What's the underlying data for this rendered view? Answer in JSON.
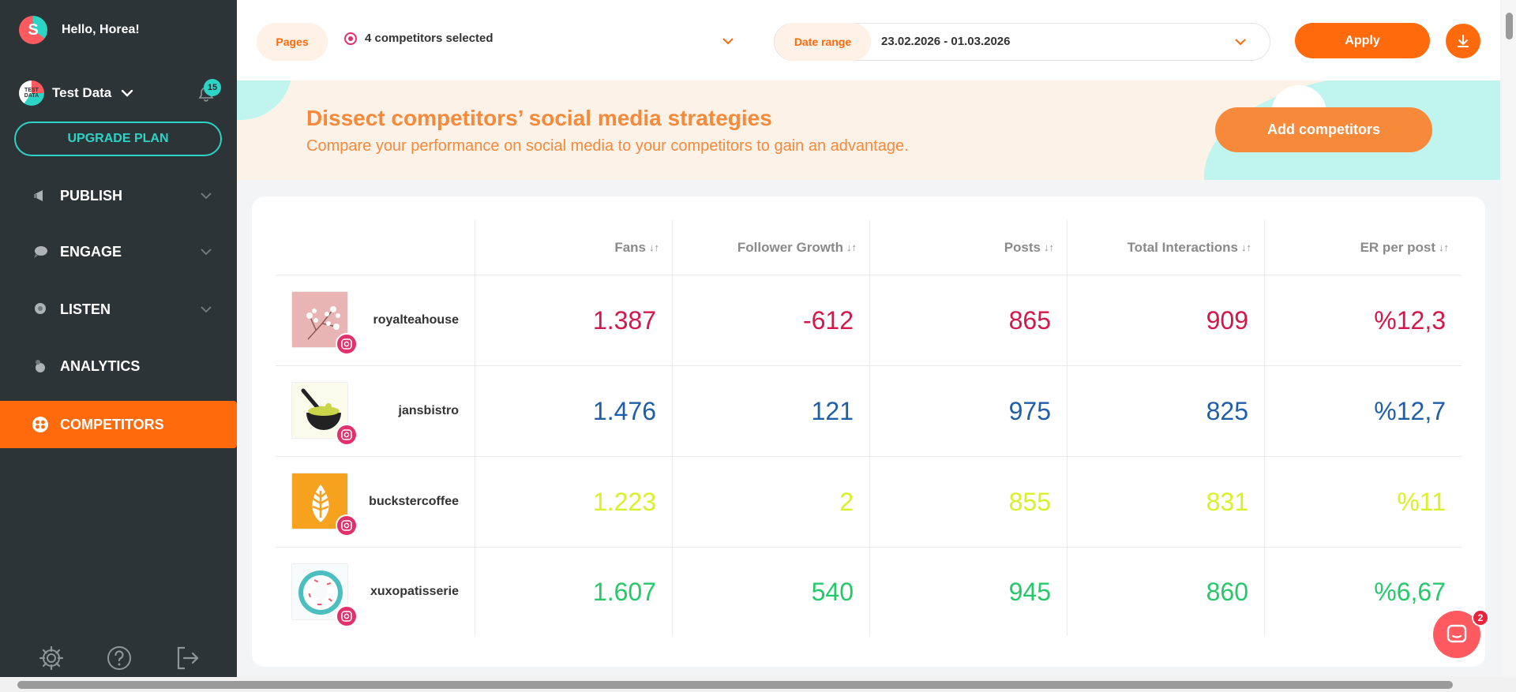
{
  "sidebar": {
    "hello": "Hello, Horea!",
    "logo_letter": "S",
    "workspace": {
      "avatar_text": "TEST DATA",
      "name": "Test Data"
    },
    "notifications_count": "15",
    "upgrade_label": "UPGRADE PLAN",
    "nav": [
      {
        "label": "PUBLISH",
        "icon": "megaphone-icon",
        "expandable": true
      },
      {
        "label": "ENGAGE",
        "icon": "chat-bubble-icon",
        "expandable": true
      },
      {
        "label": "LISTEN",
        "icon": "ear-icon",
        "expandable": true
      },
      {
        "label": "ANALYTICS",
        "icon": "chart-icon",
        "expandable": false
      },
      {
        "label": "COMPETITORS",
        "icon": "competitors-icon",
        "expandable": false,
        "active": true
      }
    ]
  },
  "filters": {
    "pages_label": "Pages",
    "pages_value": "4 competitors selected",
    "date_label": "Date range",
    "date_value": "23.02.2026 - 01.03.2026",
    "apply_label": "Apply"
  },
  "banner": {
    "title": "Dissect competitors’ social media strategies",
    "subtitle": "Compare your performance on social media to your competitors to gain an advantage.",
    "button_label": "Add competitors"
  },
  "table": {
    "columns": [
      "Fans",
      "Follower Growth",
      "Posts",
      "Total Interactions",
      "ER per post"
    ],
    "sort_glyph": "↓↑",
    "rows": [
      {
        "name": "royalteahouse",
        "color": "#d4174a",
        "values": [
          "1.387",
          "-612",
          "865",
          "909",
          "%12,3"
        ]
      },
      {
        "name": "jansbistro",
        "color": "#1f5ea8",
        "values": [
          "1.476",
          "121",
          "975",
          "825",
          "%12,7"
        ]
      },
      {
        "name": "buckstercoffee",
        "color": "#d9f02a",
        "values": [
          "1.223",
          "2",
          "855",
          "831",
          "%11"
        ]
      },
      {
        "name": "xuxopatisserie",
        "color": "#25c96a",
        "values": [
          "1.607",
          "540",
          "945",
          "860",
          "%6,67"
        ]
      }
    ]
  },
  "chat": {
    "badge": "2"
  },
  "colors": {
    "accent": "#ff6a0d",
    "sidebar_bg": "#2c3437",
    "teal": "#2bd4c5",
    "instagram": "#e1306c"
  }
}
